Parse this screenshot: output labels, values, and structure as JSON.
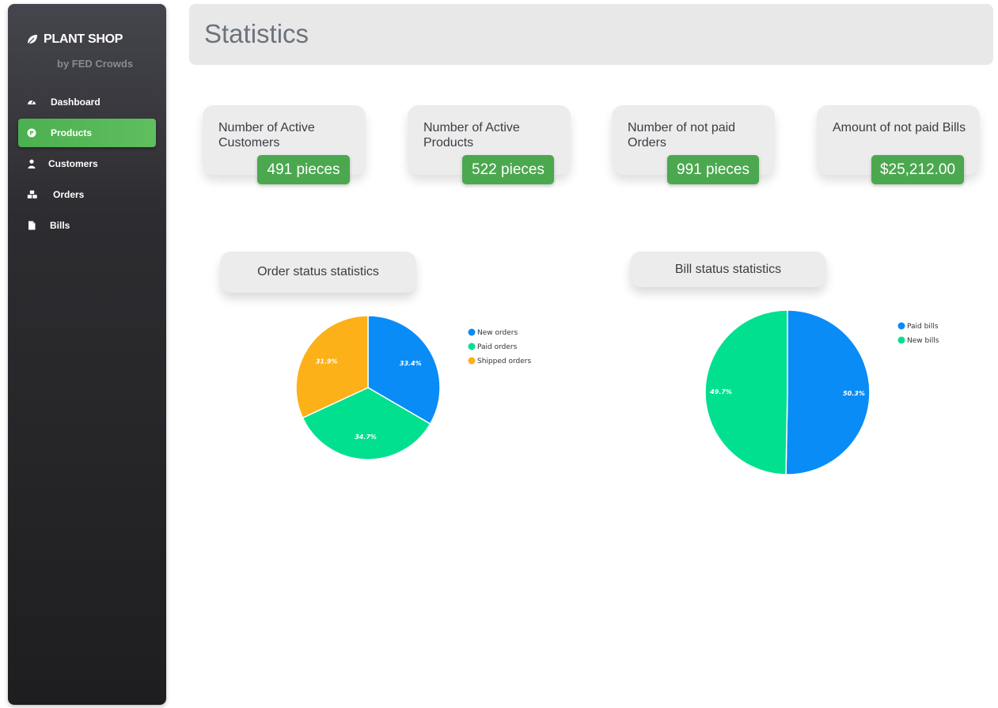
{
  "brand": {
    "name": "PLANT SHOP",
    "subtitle": "by FED Crowds"
  },
  "nav": {
    "items": [
      {
        "label": "Dashboard",
        "icon": "gauge-icon"
      },
      {
        "label": "Products",
        "icon": "product-icon",
        "active": true
      },
      {
        "label": "Customers",
        "icon": "user-icon"
      },
      {
        "label": "Orders",
        "icon": "boxes-icon"
      },
      {
        "label": "Bills",
        "icon": "file-icon"
      }
    ]
  },
  "header": {
    "title": "Statistics"
  },
  "cards": [
    {
      "title": "Number of Active Customers",
      "value": "491 pieces"
    },
    {
      "title": "Number of Active Products",
      "value": "522 pieces"
    },
    {
      "title": "Number of not paid Orders",
      "value": "991 pieces"
    },
    {
      "title": "Amount of not paid Bills",
      "value": "$25,212.00"
    }
  ],
  "colors": {
    "accent_green": "#4ba84f",
    "blue": "#0a8cf7",
    "green": "#00e08e",
    "orange": "#fcb118"
  },
  "chart_data": [
    {
      "type": "pie",
      "title": "Order status statistics",
      "legend": "right",
      "slices": [
        {
          "label": "New orders",
          "value": 33.4,
          "display": "33.4%",
          "color": "#0a8cf7"
        },
        {
          "label": "Paid orders",
          "value": 34.7,
          "display": "34.7%",
          "color": "#00e08e"
        },
        {
          "label": "Shipped orders",
          "value": 31.9,
          "display": "31.9%",
          "color": "#fcb118"
        }
      ]
    },
    {
      "type": "pie",
      "title": "Bill status statistics",
      "legend": "right",
      "slices": [
        {
          "label": "Paid bills",
          "value": 50.3,
          "display": "50.3%",
          "color": "#0a8cf7"
        },
        {
          "label": "New bills",
          "value": 49.7,
          "display": "49.7%",
          "color": "#00e08e"
        }
      ]
    }
  ]
}
